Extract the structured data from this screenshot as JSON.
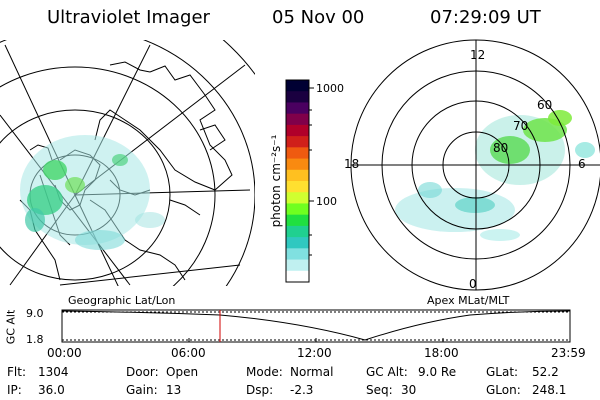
{
  "header": {
    "instrument": "Ultraviolet Imager",
    "date": "05 Nov 00",
    "time": "07:29:09 UT"
  },
  "colorbar": {
    "unit": "photon cm⁻²s⁻¹",
    "ticks": [
      "1000",
      "100"
    ],
    "colors": [
      "#000033",
      "#1a0040",
      "#4a0060",
      "#80004a",
      "#b0002a",
      "#d0201a",
      "#ef5a10",
      "#f98a10",
      "#ffc020",
      "#ffe030",
      "#d0ff30",
      "#70ff20",
      "#20e040",
      "#20d090",
      "#30c8c0",
      "#80e0e0",
      "#c0f0f0",
      "#ffffff"
    ]
  },
  "polar": {
    "mlt_labels": [
      "12",
      "18",
      "6",
      "0"
    ],
    "lat_labels": [
      "60",
      "70",
      "80"
    ]
  },
  "panel_labels": {
    "left": "Geographic Lat/Lon",
    "right": "Apex MLat/MLT"
  },
  "altitude_plot": {
    "axis_title": "GC Alt",
    "y_ticks": [
      "9.0",
      "1.8"
    ],
    "x_ticks": [
      "00:00",
      "06:00",
      "12:00",
      "18:00",
      "23:59"
    ],
    "marker_time": "07:29"
  },
  "status": {
    "flt_label": "Flt:",
    "flt": "1304",
    "ip_label": "IP:",
    "ip": "36.0",
    "door_label": "Door:",
    "door": "Open",
    "gain_label": "Gain:",
    "gain": "13",
    "mode_label": "Mode:",
    "mode": "Normal",
    "dsp_label": "Dsp:",
    "dsp": "-2.3",
    "gcalt_label": "GC Alt:",
    "gcalt": "9.0 Re",
    "seq_label": "Seq:",
    "seq": "30",
    "glat_label": "GLat:",
    "glat": "52.2",
    "glon_label": "GLon:",
    "glon": "248.1"
  }
}
